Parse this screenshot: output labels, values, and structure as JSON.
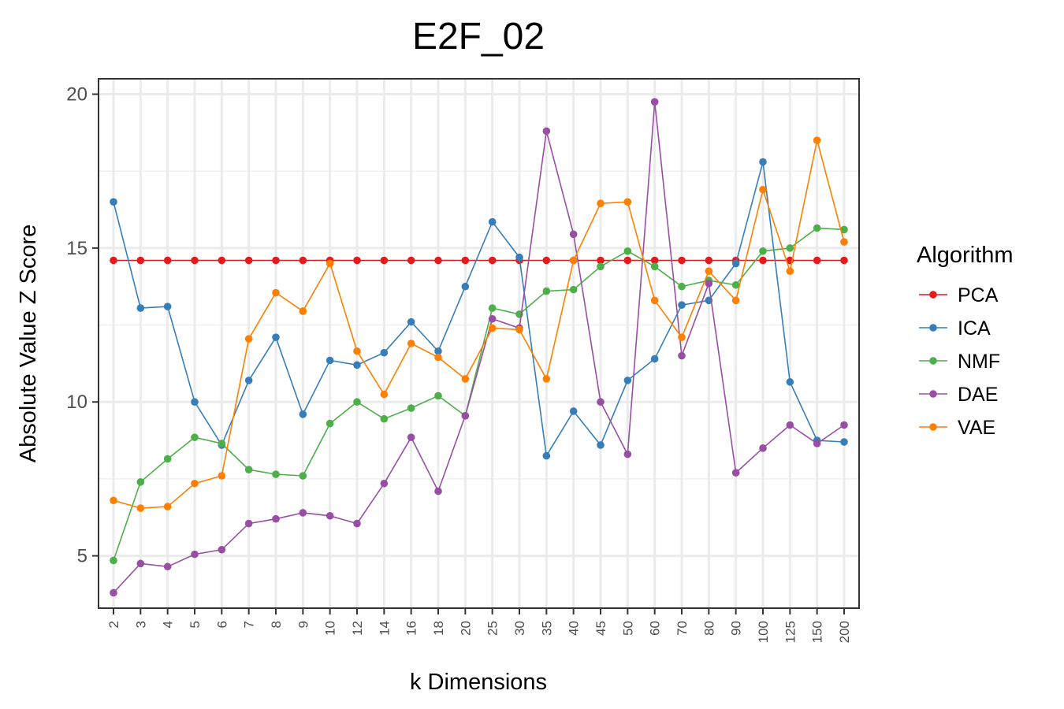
{
  "chart_data": {
    "type": "line",
    "title": "E2F_02",
    "xlabel": "k Dimensions",
    "ylabel": "Absolute Value Z Score",
    "ylim": [
      3.3,
      20.5
    ],
    "yticks": [
      5,
      10,
      15,
      20
    ],
    "grid": true,
    "legend": {
      "title": "Algorithm",
      "placement": "right"
    },
    "categories": [
      "2",
      "3",
      "4",
      "5",
      "6",
      "7",
      "8",
      "9",
      "10",
      "12",
      "14",
      "16",
      "18",
      "20",
      "25",
      "30",
      "35",
      "40",
      "45",
      "50",
      "60",
      "70",
      "80",
      "90",
      "100",
      "125",
      "150",
      "200"
    ],
    "series": [
      {
        "name": "PCA",
        "color": "#e41a1c",
        "values": [
          14.6,
          14.6,
          14.6,
          14.6,
          14.6,
          14.6,
          14.6,
          14.6,
          14.6,
          14.6,
          14.6,
          14.6,
          14.6,
          14.6,
          14.6,
          14.6,
          14.6,
          14.6,
          14.6,
          14.6,
          14.6,
          14.6,
          14.6,
          14.6,
          14.6,
          14.6,
          14.6,
          14.6
        ]
      },
      {
        "name": "ICA",
        "color": "#377eb8",
        "values": [
          16.5,
          13.05,
          13.1,
          10.0,
          8.6,
          10.7,
          12.1,
          9.6,
          11.35,
          11.2,
          11.6,
          12.6,
          11.65,
          13.75,
          15.85,
          14.7,
          8.25,
          9.7,
          8.6,
          10.7,
          11.4,
          13.15,
          13.3,
          14.5,
          17.8,
          10.65,
          8.75,
          8.7
        ]
      },
      {
        "name": "NMF",
        "color": "#4daf4a",
        "values": [
          4.85,
          7.4,
          8.15,
          8.85,
          8.65,
          7.8,
          7.65,
          7.6,
          9.3,
          10.0,
          9.45,
          9.8,
          10.2,
          9.55,
          13.05,
          12.85,
          13.6,
          13.65,
          14.4,
          14.9,
          14.4,
          13.75,
          13.95,
          13.8,
          14.9,
          15.0,
          15.65,
          15.6
        ]
      },
      {
        "name": "DAE",
        "color": "#984ea3",
        "values": [
          3.8,
          4.75,
          4.65,
          5.05,
          5.2,
          6.05,
          6.2,
          6.4,
          6.3,
          6.05,
          7.35,
          8.85,
          7.1,
          9.55,
          12.7,
          12.4,
          18.8,
          15.45,
          10.0,
          8.3,
          19.75,
          11.5,
          13.85,
          7.7,
          8.5,
          9.25,
          8.65,
          9.25
        ]
      },
      {
        "name": "VAE",
        "color": "#ff7f00",
        "values": [
          6.8,
          6.55,
          6.6,
          7.35,
          7.6,
          12.05,
          13.55,
          12.95,
          14.5,
          11.65,
          10.25,
          11.9,
          11.45,
          10.75,
          12.4,
          12.35,
          10.75,
          14.6,
          16.45,
          16.5,
          13.3,
          12.1,
          14.25,
          13.3,
          16.9,
          14.25,
          18.5,
          15.2
        ]
      }
    ]
  }
}
